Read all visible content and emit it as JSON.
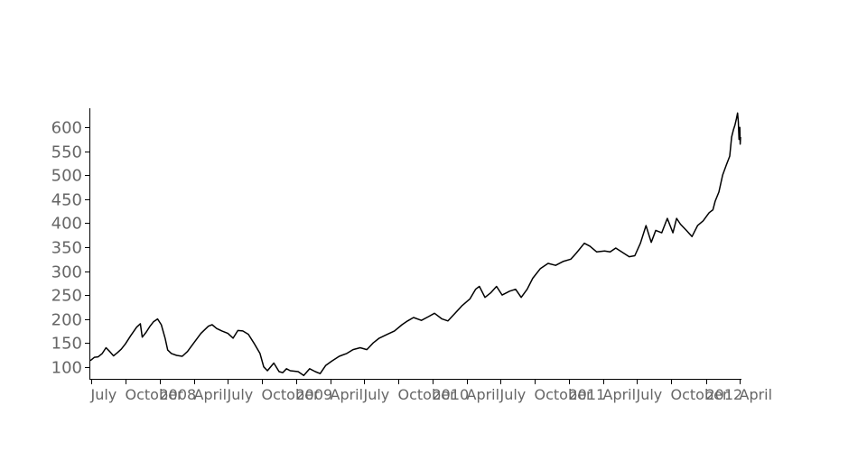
{
  "chart_data": {
    "type": "line",
    "title": "",
    "xlabel": "",
    "ylabel": "",
    "grid": false,
    "legend": "none",
    "line_color": "#000000",
    "tick_label_color": "#666666",
    "xlim": [
      "2007-06-29",
      "2012-04-03"
    ],
    "ylim": [
      75,
      640
    ],
    "y_ticks": [
      100,
      150,
      200,
      250,
      300,
      350,
      400,
      450,
      500,
      550,
      600
    ],
    "x_ticks": [
      {
        "date": "2007-07-01",
        "label": "July"
      },
      {
        "date": "2007-10-01",
        "label": "October"
      },
      {
        "date": "2008-01-01",
        "label": "2008"
      },
      {
        "date": "2008-04-01",
        "label": "April"
      },
      {
        "date": "2008-07-01",
        "label": "July"
      },
      {
        "date": "2008-10-01",
        "label": "October"
      },
      {
        "date": "2009-01-01",
        "label": "2009"
      },
      {
        "date": "2009-04-01",
        "label": "April"
      },
      {
        "date": "2009-07-01",
        "label": "July"
      },
      {
        "date": "2009-10-01",
        "label": "October"
      },
      {
        "date": "2010-01-01",
        "label": "2010"
      },
      {
        "date": "2010-04-01",
        "label": "April"
      },
      {
        "date": "2010-07-01",
        "label": "July"
      },
      {
        "date": "2010-10-01",
        "label": "October"
      },
      {
        "date": "2011-01-01",
        "label": "2011"
      },
      {
        "date": "2011-04-01",
        "label": "April"
      },
      {
        "date": "2011-07-01",
        "label": "July"
      },
      {
        "date": "2011-10-01",
        "label": "October"
      },
      {
        "date": "2012-01-01",
        "label": "2012"
      },
      {
        "date": "2012-04-01",
        "label": "April"
      }
    ],
    "series": [
      {
        "points": [
          [
            "2007-06-29",
            113
          ],
          [
            "2007-07-10",
            120
          ],
          [
            "2007-07-20",
            121
          ],
          [
            "2007-07-31",
            128
          ],
          [
            "2007-08-10",
            140
          ],
          [
            "2007-08-20",
            132
          ],
          [
            "2007-08-30",
            123
          ],
          [
            "2007-09-10",
            130
          ],
          [
            "2007-09-20",
            137
          ],
          [
            "2007-10-01",
            148
          ],
          [
            "2007-10-15",
            165
          ],
          [
            "2007-10-31",
            183
          ],
          [
            "2007-11-10",
            190
          ],
          [
            "2007-11-15",
            162
          ],
          [
            "2007-11-25",
            172
          ],
          [
            "2007-12-05",
            184
          ],
          [
            "2007-12-15",
            194
          ],
          [
            "2007-12-26",
            200
          ],
          [
            "2008-01-05",
            188
          ],
          [
            "2008-01-15",
            160
          ],
          [
            "2008-01-22",
            135
          ],
          [
            "2008-02-01",
            128
          ],
          [
            "2008-02-15",
            124
          ],
          [
            "2008-03-01",
            122
          ],
          [
            "2008-03-15",
            132
          ],
          [
            "2008-04-01",
            150
          ],
          [
            "2008-04-20",
            170
          ],
          [
            "2008-05-10",
            185
          ],
          [
            "2008-05-20",
            188
          ],
          [
            "2008-06-01",
            180
          ],
          [
            "2008-06-15",
            175
          ],
          [
            "2008-07-01",
            170
          ],
          [
            "2008-07-15",
            160
          ],
          [
            "2008-07-28",
            176
          ],
          [
            "2008-08-10",
            175
          ],
          [
            "2008-08-25",
            168
          ],
          [
            "2008-09-10",
            148
          ],
          [
            "2008-09-25",
            128
          ],
          [
            "2008-10-05",
            100
          ],
          [
            "2008-10-15",
            92
          ],
          [
            "2008-11-01",
            108
          ],
          [
            "2008-11-15",
            90
          ],
          [
            "2008-11-25",
            88
          ],
          [
            "2008-12-05",
            96
          ],
          [
            "2008-12-15",
            92
          ],
          [
            "2009-01-05",
            90
          ],
          [
            "2009-01-20",
            82
          ],
          [
            "2009-02-05",
            96
          ],
          [
            "2009-02-20",
            90
          ],
          [
            "2009-03-05",
            86
          ],
          [
            "2009-03-20",
            103
          ],
          [
            "2009-04-05",
            112
          ],
          [
            "2009-04-25",
            122
          ],
          [
            "2009-05-15",
            128
          ],
          [
            "2009-06-01",
            136
          ],
          [
            "2009-06-20",
            140
          ],
          [
            "2009-07-08",
            136
          ],
          [
            "2009-07-25",
            150
          ],
          [
            "2009-08-10",
            160
          ],
          [
            "2009-09-01",
            168
          ],
          [
            "2009-09-20",
            175
          ],
          [
            "2009-10-10",
            188
          ],
          [
            "2009-10-25",
            196
          ],
          [
            "2009-11-10",
            203
          ],
          [
            "2009-12-01",
            197
          ],
          [
            "2009-12-20",
            205
          ],
          [
            "2010-01-05",
            212
          ],
          [
            "2010-01-25",
            200
          ],
          [
            "2010-02-10",
            196
          ],
          [
            "2010-03-01",
            212
          ],
          [
            "2010-03-20",
            228
          ],
          [
            "2010-04-10",
            242
          ],
          [
            "2010-04-25",
            262
          ],
          [
            "2010-05-05",
            268
          ],
          [
            "2010-05-20",
            245
          ],
          [
            "2010-06-05",
            255
          ],
          [
            "2010-06-20",
            268
          ],
          [
            "2010-07-05",
            250
          ],
          [
            "2010-07-25",
            258
          ],
          [
            "2010-08-10",
            262
          ],
          [
            "2010-08-25",
            245
          ],
          [
            "2010-09-10",
            262
          ],
          [
            "2010-09-25",
            285
          ],
          [
            "2010-10-15",
            305
          ],
          [
            "2010-11-05",
            316
          ],
          [
            "2010-11-25",
            312
          ],
          [
            "2010-12-15",
            320
          ],
          [
            "2011-01-05",
            325
          ],
          [
            "2011-01-20",
            338
          ],
          [
            "2011-02-10",
            358
          ],
          [
            "2011-02-25",
            352
          ],
          [
            "2011-03-15",
            340
          ],
          [
            "2011-04-05",
            342
          ],
          [
            "2011-04-20",
            340
          ],
          [
            "2011-05-05",
            348
          ],
          [
            "2011-05-25",
            338
          ],
          [
            "2011-06-10",
            330
          ],
          [
            "2011-06-25",
            332
          ],
          [
            "2011-07-10",
            358
          ],
          [
            "2011-07-25",
            395
          ],
          [
            "2011-08-08",
            360
          ],
          [
            "2011-08-20",
            385
          ],
          [
            "2011-09-05",
            380
          ],
          [
            "2011-09-20",
            410
          ],
          [
            "2011-10-05",
            380
          ],
          [
            "2011-10-15",
            410
          ],
          [
            "2011-10-25",
            398
          ],
          [
            "2011-11-10",
            385
          ],
          [
            "2011-11-25",
            372
          ],
          [
            "2011-12-10",
            395
          ],
          [
            "2011-12-25",
            405
          ],
          [
            "2012-01-10",
            422
          ],
          [
            "2012-01-20",
            428
          ],
          [
            "2012-01-26",
            446
          ],
          [
            "2012-02-05",
            465
          ],
          [
            "2012-02-15",
            500
          ],
          [
            "2012-02-25",
            522
          ],
          [
            "2012-03-05",
            540
          ],
          [
            "2012-03-10",
            580
          ],
          [
            "2012-03-15",
            595
          ],
          [
            "2012-03-19",
            605
          ],
          [
            "2012-03-23",
            618
          ],
          [
            "2012-03-26",
            630
          ],
          [
            "2012-03-28",
            612
          ],
          [
            "2012-03-30",
            575
          ],
          [
            "2012-04-01",
            600
          ],
          [
            "2012-04-02",
            565
          ],
          [
            "2012-04-03",
            580
          ]
        ]
      }
    ]
  }
}
